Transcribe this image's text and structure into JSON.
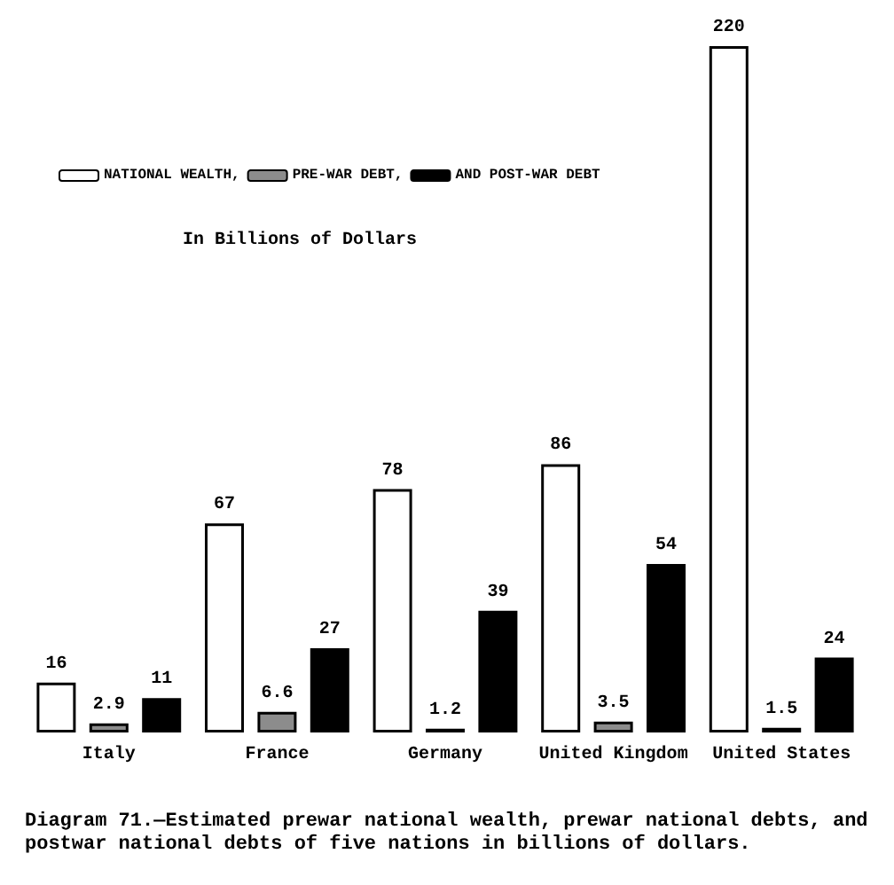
{
  "chart_data": {
    "type": "bar",
    "subtitle": "In Billions of Dollars",
    "categories": [
      "Italy",
      "France",
      "Germany",
      "United Kingdom",
      "United States"
    ],
    "series": [
      {
        "name": "NATIONAL WEALTH,",
        "color": "#ffffff",
        "values": [
          16,
          67,
          78,
          86,
          220
        ]
      },
      {
        "name": "PRE-WAR DEBT,",
        "color": "#8c8c8c",
        "values": [
          2.9,
          6.6,
          1.2,
          3.5,
          1.5
        ]
      },
      {
        "name": "AND POST-WAR DEBT",
        "color": "#000000",
        "values": [
          11,
          27,
          39,
          54,
          24
        ]
      }
    ],
    "ylim": [
      0,
      220
    ],
    "tick_labels": "x",
    "data_labels": true,
    "legend": "top left",
    "annotations": [
      "Diagram 71.—Estimated prewar national wealth, prewar national debts, and postwar national debts of five nations in billions of dollars."
    ]
  }
}
